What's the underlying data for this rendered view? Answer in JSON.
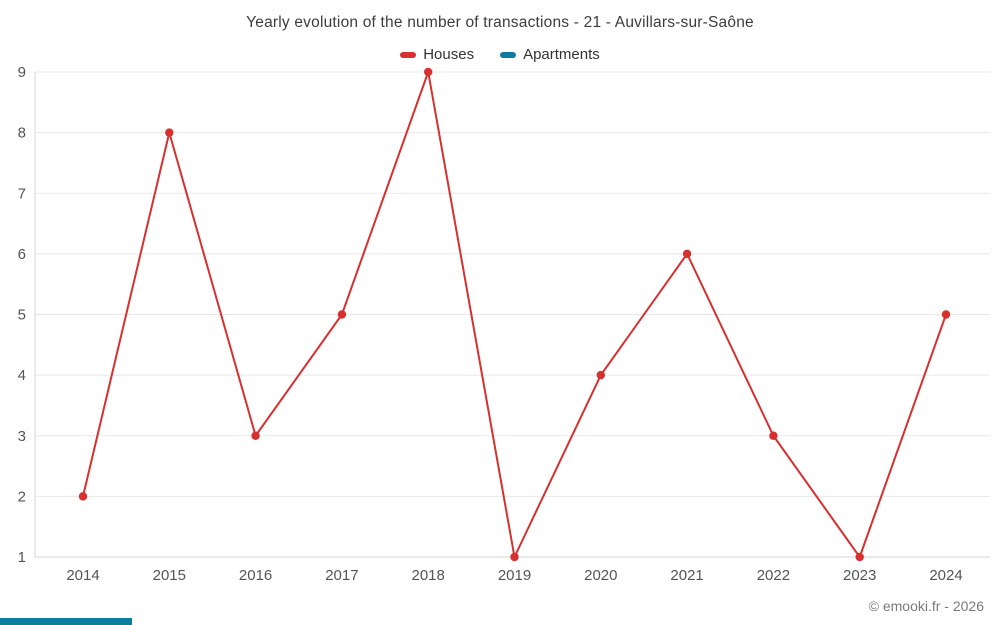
{
  "footer": {
    "attribution": "© emooki.fr - 2026"
  },
  "colors": {
    "houses": "#d7302f",
    "apartments": "#0e7ca0",
    "grid": "#e8e8e8",
    "axis": "#d6d6d6",
    "tick_text": "#555555",
    "bottom_bar": "#0e7ca0"
  },
  "chart_data": {
    "type": "line",
    "title": "Yearly evolution of the number of transactions - 21 - Auvillars-sur-Saône",
    "categories": [
      "2014",
      "2015",
      "2016",
      "2017",
      "2018",
      "2019",
      "2020",
      "2021",
      "2022",
      "2023",
      "2024"
    ],
    "series": [
      {
        "name": "Houses",
        "color": "#d7302f",
        "values": [
          2,
          8,
          3,
          5,
          9,
          1,
          4,
          6,
          3,
          1,
          5
        ]
      },
      {
        "name": "Apartments",
        "color": "#0e7ca0",
        "values": []
      }
    ],
    "xlabel": "",
    "ylabel": "",
    "ylim": [
      1,
      9
    ],
    "y_ticks": [
      1,
      2,
      3,
      4,
      5,
      6,
      7,
      8,
      9
    ],
    "grid": "horizontal",
    "legend_position": "top"
  }
}
